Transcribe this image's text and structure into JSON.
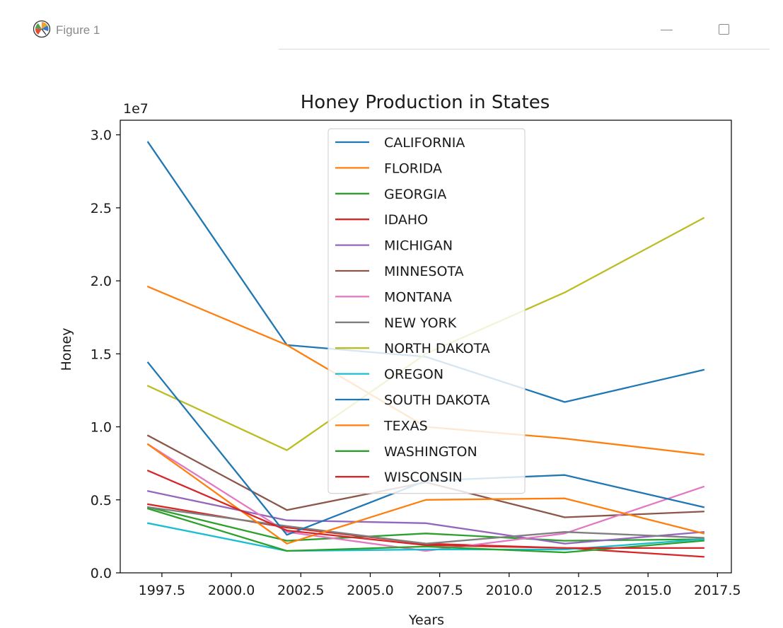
{
  "window": {
    "title": "Figure 1",
    "icon": "matplotlib-icon",
    "controls": [
      "minimize",
      "maximize"
    ]
  },
  "chart_data": {
    "type": "line",
    "title": "Honey Production in States",
    "xlabel": "Years",
    "ylabel": "Honey",
    "y_offset_label": "1e7",
    "xlim": [
      1996.0,
      2018.0
    ],
    "ylim": [
      0,
      3.1
    ],
    "y_multiplier": 10000000,
    "x_ticks": [
      1997.5,
      2000.0,
      2002.5,
      2005.0,
      2007.5,
      2010.0,
      2012.5,
      2015.0,
      2017.5
    ],
    "x_tick_labels": [
      "1997.5",
      "2000.0",
      "2002.5",
      "2005.0",
      "2007.5",
      "2010.0",
      "2012.5",
      "2015.0",
      "2017.5"
    ],
    "y_ticks": [
      0.0,
      0.5,
      1.0,
      1.5,
      2.0,
      2.5,
      3.0
    ],
    "y_tick_labels": [
      "0.0",
      "0.5",
      "1.0",
      "1.5",
      "2.0",
      "2.5",
      "3.0"
    ],
    "grid": false,
    "legend_position": "top-center",
    "x": [
      1997,
      2002,
      2007,
      2012,
      2017
    ],
    "series": [
      {
        "name": "CALIFORNIA",
        "color": "#1f77b4",
        "values": [
          2.95,
          1.56,
          1.48,
          1.17,
          1.39
        ]
      },
      {
        "name": "FLORIDA",
        "color": "#ff7f0e",
        "values": [
          1.96,
          1.56,
          1.0,
          0.92,
          0.81
        ]
      },
      {
        "name": "GEORGIA",
        "color": "#2ca02c",
        "values": [
          0.45,
          0.22,
          0.27,
          0.22,
          0.23
        ]
      },
      {
        "name": "IDAHO",
        "color": "#d62728",
        "values": [
          0.47,
          0.31,
          0.2,
          0.17,
          0.11
        ]
      },
      {
        "name": "MICHIGAN",
        "color": "#9467bd",
        "values": [
          0.56,
          0.36,
          0.34,
          0.2,
          0.28
        ]
      },
      {
        "name": "MINNESOTA",
        "color": "#8c564b",
        "values": [
          0.94,
          0.43,
          0.62,
          0.38,
          0.42
        ]
      },
      {
        "name": "MONTANA",
        "color": "#e377c2",
        "values": [
          0.88,
          0.28,
          0.15,
          0.27,
          0.59
        ]
      },
      {
        "name": "NEW YORK",
        "color": "#7f7f7f",
        "values": [
          0.45,
          0.32,
          0.2,
          0.28,
          0.24
        ]
      },
      {
        "name": "NORTH DAKOTA",
        "color": "#bcbd22",
        "values": [
          1.28,
          0.84,
          1.5,
          1.92,
          2.43
        ]
      },
      {
        "name": "OREGON",
        "color": "#17becf",
        "values": [
          0.34,
          0.15,
          0.16,
          0.16,
          0.23
        ]
      },
      {
        "name": "SOUTH DAKOTA",
        "color": "#1f77b4",
        "values": [
          1.44,
          0.26,
          0.63,
          0.67,
          0.45
        ]
      },
      {
        "name": "TEXAS",
        "color": "#ff7f0e",
        "values": [
          0.88,
          0.2,
          0.5,
          0.51,
          0.27
        ]
      },
      {
        "name": "WASHINGTON",
        "color": "#2ca02c",
        "values": [
          0.44,
          0.15,
          0.18,
          0.14,
          0.22
        ]
      },
      {
        "name": "WISCONSIN",
        "color": "#d62728",
        "values": [
          0.7,
          0.29,
          0.19,
          0.17,
          0.17
        ]
      }
    ]
  }
}
